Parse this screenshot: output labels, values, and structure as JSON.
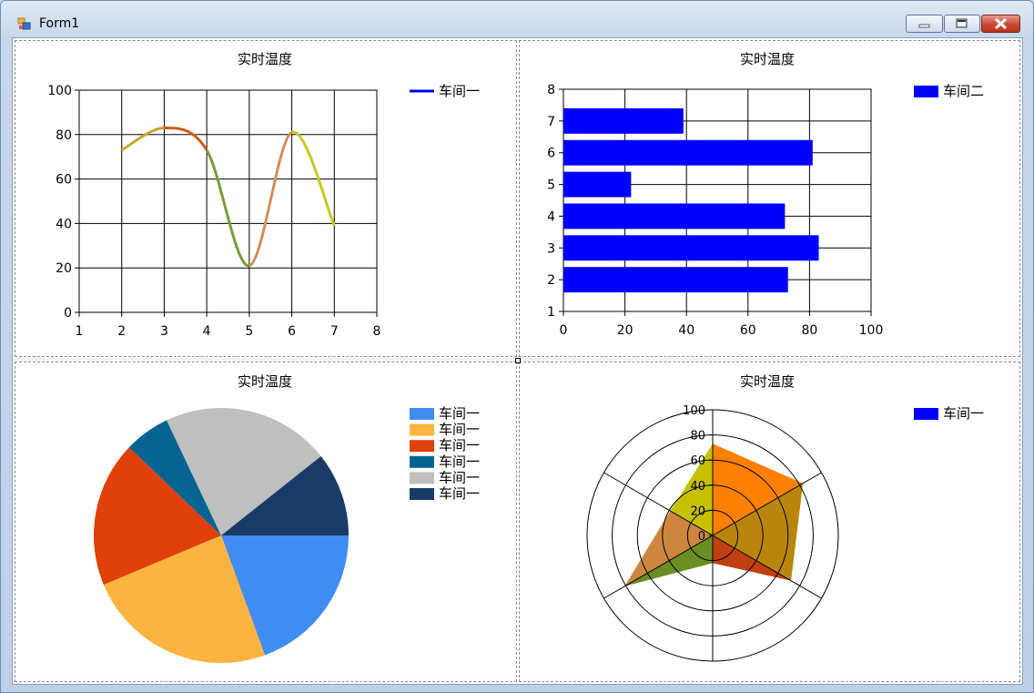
{
  "window": {
    "title": "Form1"
  },
  "chart_data": [
    {
      "type": "line",
      "title": "实时温度",
      "x": [
        2,
        3,
        4,
        5,
        6,
        7
      ],
      "series": [
        {
          "name": "车间一",
          "values": [
            73,
            83,
            73,
            21,
            81,
            39
          ]
        }
      ],
      "xlim": [
        1,
        8
      ],
      "ylim": [
        0,
        100
      ],
      "xticks": [
        1,
        2,
        3,
        4,
        5,
        6,
        7,
        8
      ],
      "yticks": [
        0,
        20,
        40,
        60,
        80,
        100
      ],
      "grid": true,
      "legend": "top-right",
      "segment_colors": [
        "#c8a432",
        "#d45a1a",
        "#7a9a3a",
        "#d38e58",
        "#c9c61e"
      ],
      "legend_color": "#0000ff"
    },
    {
      "type": "bar",
      "orientation": "horizontal",
      "title": "实时温度",
      "categories": [
        2,
        3,
        4,
        5,
        6,
        7
      ],
      "series": [
        {
          "name": "车间二",
          "values": [
            73,
            83,
            72,
            22,
            81,
            39
          ]
        }
      ],
      "xlim": [
        0,
        100
      ],
      "ylim": [
        1,
        8
      ],
      "xticks": [
        0,
        20,
        40,
        60,
        80,
        100
      ],
      "yticks": [
        1,
        2,
        3,
        4,
        5,
        6,
        7,
        8
      ],
      "grid": true,
      "legend": "top-right",
      "color": "#0000ff"
    },
    {
      "type": "pie",
      "title": "实时温度",
      "legend": "top-right",
      "slices": [
        {
          "name": "车间一",
          "value": 20,
          "color": "#418cf0"
        },
        {
          "name": "车间一",
          "value": 25,
          "color": "#fcb441"
        },
        {
          "name": "车间一",
          "value": 19,
          "color": "#e0400a"
        },
        {
          "name": "车间一",
          "value": 6,
          "color": "#056492"
        },
        {
          "name": "车间一",
          "value": 22,
          "color": "#bfbfbf"
        },
        {
          "name": "车间一",
          "value": 11,
          "color": "#1a3b69"
        }
      ]
    },
    {
      "type": "radar",
      "title": "实时温度",
      "legend": "top-right",
      "rmax": 100,
      "rticks": [
        0,
        20,
        40,
        60,
        80,
        100
      ],
      "axes_count": 6,
      "series": [
        {
          "name": "车间一",
          "values": [
            73,
            83,
            72,
            22,
            81,
            39
          ],
          "color": "#0000ff"
        }
      ],
      "sector_colors": [
        "#ff8000",
        "#b8860b",
        "#c04010",
        "#6b8e23",
        "#cd853f",
        "#c6c000"
      ]
    }
  ]
}
